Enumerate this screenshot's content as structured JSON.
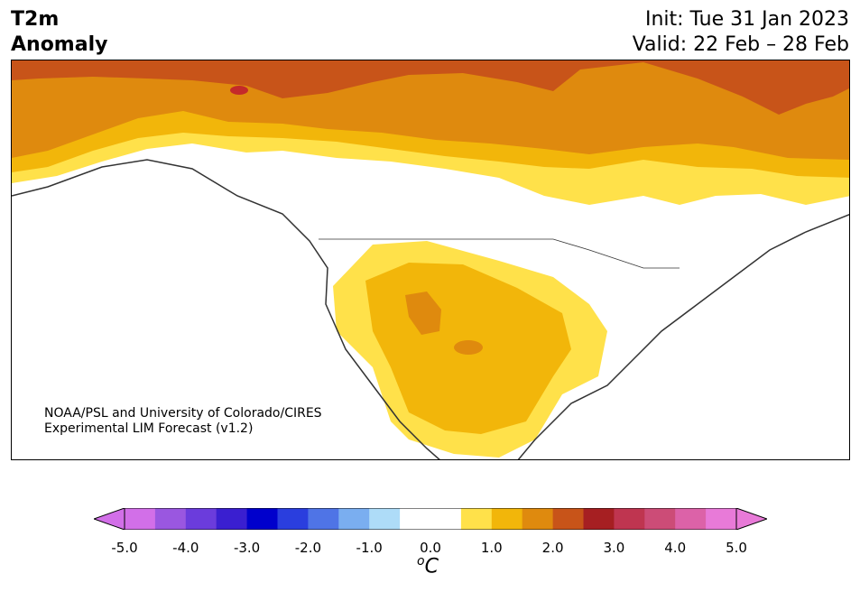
{
  "header": {
    "title_line1": "T2m",
    "title_line2": "Anomaly",
    "init": "Init: Tue 31 Jan 2023",
    "valid": "Valid: 22 Feb – 28 Feb"
  },
  "credit": {
    "line1": "NOAA/PSL and University of Colorado/CIRES",
    "line2": "Experimental LIM Forecast (v1.2)"
  },
  "legend": {
    "unit_base": "C",
    "unit_sup": "o",
    "ticks": [
      "-5.0",
      "-4.0",
      "-3.0",
      "-2.0",
      "-1.0",
      "0.0",
      "1.0",
      "2.0",
      "3.0",
      "4.0",
      "5.0"
    ],
    "colors": [
      "#d26fe8",
      "#9a57e0",
      "#6b3cdc",
      "#3a1fd0",
      "#0000cc",
      "#2a3ede",
      "#4f74e6",
      "#7aaef0",
      "#aedcf8",
      "#ffffff",
      "#ffffff",
      "#ffe14a",
      "#f2b60a",
      "#df8a0e",
      "#c85419",
      "#a61f22",
      "#bf3550",
      "#cc4c77",
      "#dc62a8",
      "#e87ad8"
    ],
    "extend_low": "#d26fe8",
    "extend_high": "#e87ad8"
  },
  "map_colors": {
    "c1": "#ffe14a",
    "c2": "#f2b60a",
    "c3": "#df8a0e",
    "c4": "#c85419",
    "c5": "#c42a2a"
  }
}
